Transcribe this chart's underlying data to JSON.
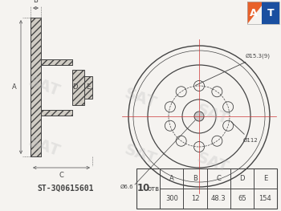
{
  "bg_color": "#f5f3f0",
  "line_color": "#444444",
  "red_line_color": "#cc3333",
  "dim_line_color": "#666666",
  "part_number": "ST-3Q0615601",
  "holes_label": "отв.",
  "table_headers": [
    "A",
    "B",
    "C",
    "D",
    "E"
  ],
  "table_values": [
    "300",
    "12",
    "48.3",
    "65",
    "154"
  ],
  "annotations": {
    "hole_dia": "Ø15.3(9)",
    "pcd": "Ø112",
    "center_dia": "Ø6.6"
  },
  "logo_colors": {
    "orange": "#e8612a",
    "blue": "#1a4fa0"
  },
  "sat_watermark": "SAT"
}
